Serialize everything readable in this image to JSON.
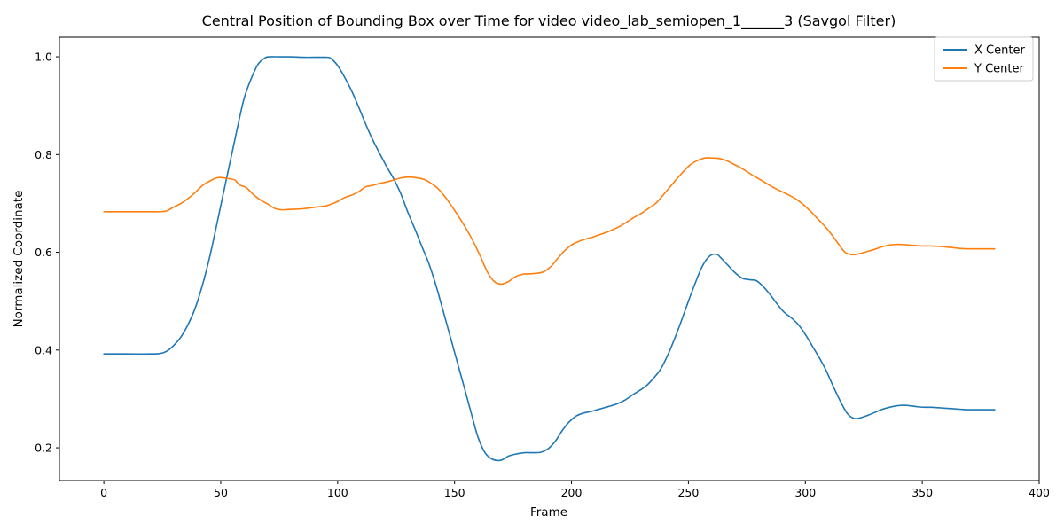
{
  "chart_data": {
    "type": "line",
    "title": "Central Position of Bounding Box over Time for video video_lab_semiopen_1______3 (Savgol Filter)",
    "xlabel": "Frame",
    "ylabel": "Normalized Coordinate",
    "xlim": [
      -19,
      400
    ],
    "ylim": [
      0.133,
      1.04
    ],
    "xticks": [
      0,
      50,
      100,
      150,
      200,
      250,
      300,
      350,
      400
    ],
    "yticks": [
      0.2,
      0.4,
      0.6,
      0.8,
      1.0
    ],
    "xtick_labels": [
      "0",
      "50",
      "100",
      "150",
      "200",
      "250",
      "300",
      "350",
      "400"
    ],
    "ytick_labels": [
      "0.2",
      "0.4",
      "0.6",
      "0.8",
      "1.0"
    ],
    "grid": false,
    "legend_position": "top-right",
    "series": [
      {
        "name": "X Center",
        "color": "#1f77b4",
        "x": [
          0,
          10,
          20,
          24,
          27,
          30,
          33,
          36,
          39,
          42,
          45,
          48,
          51,
          54,
          57,
          60,
          63,
          66,
          69,
          71,
          75,
          80,
          85,
          90,
          95,
          97,
          100,
          103,
          106,
          109,
          112,
          115,
          118,
          121,
          124,
          127,
          130,
          133,
          136,
          139,
          142,
          145,
          148,
          151,
          154,
          157,
          160,
          163,
          166,
          169,
          171,
          173,
          176,
          180,
          184,
          187,
          190,
          193,
          196,
          199,
          202,
          205,
          208,
          211,
          214,
          217,
          220,
          223,
          226,
          229,
          232,
          235,
          238,
          241,
          244,
          247,
          250,
          253,
          256,
          259,
          262,
          264,
          267,
          270,
          273,
          276,
          279,
          282,
          285,
          288,
          291,
          294,
          297,
          300,
          303,
          306,
          309,
          312,
          315,
          318,
          321,
          324,
          327,
          330,
          333,
          336,
          339,
          342,
          345,
          348,
          351,
          354,
          357,
          360,
          363,
          366,
          369,
          372,
          375,
          378,
          381
        ],
        "y": [
          0.392,
          0.392,
          0.392,
          0.393,
          0.398,
          0.41,
          0.427,
          0.452,
          0.485,
          0.53,
          0.585,
          0.65,
          0.718,
          0.785,
          0.852,
          0.915,
          0.955,
          0.985,
          0.998,
          1.0,
          1.0,
          1.0,
          0.999,
          0.999,
          0.999,
          0.997,
          0.982,
          0.958,
          0.93,
          0.897,
          0.862,
          0.83,
          0.802,
          0.775,
          0.75,
          0.72,
          0.682,
          0.648,
          0.612,
          0.577,
          0.533,
          0.482,
          0.43,
          0.378,
          0.326,
          0.273,
          0.222,
          0.19,
          0.177,
          0.174,
          0.177,
          0.183,
          0.187,
          0.19,
          0.19,
          0.191,
          0.198,
          0.213,
          0.235,
          0.253,
          0.265,
          0.271,
          0.274,
          0.278,
          0.282,
          0.286,
          0.291,
          0.298,
          0.308,
          0.317,
          0.327,
          0.342,
          0.36,
          0.388,
          0.422,
          0.46,
          0.5,
          0.538,
          0.572,
          0.592,
          0.596,
          0.588,
          0.573,
          0.558,
          0.547,
          0.544,
          0.542,
          0.53,
          0.513,
          0.494,
          0.477,
          0.466,
          0.452,
          0.432,
          0.408,
          0.384,
          0.357,
          0.325,
          0.295,
          0.27,
          0.26,
          0.262,
          0.267,
          0.273,
          0.279,
          0.283,
          0.286,
          0.287,
          0.286,
          0.284,
          0.283,
          0.283,
          0.282,
          0.281,
          0.28,
          0.279,
          0.278,
          0.278,
          0.278,
          0.278,
          0.278
        ]
      },
      {
        "name": "Y Center",
        "color": "#ff7f0e",
        "x": [
          0,
          10,
          20,
          24,
          27,
          30,
          33,
          36,
          39,
          42,
          45,
          48,
          50,
          53,
          56,
          58,
          61,
          64,
          67,
          70,
          73,
          76,
          80,
          85,
          90,
          95,
          98,
          100,
          103,
          106,
          109,
          112,
          115,
          118,
          121,
          124,
          127,
          130,
          133,
          137,
          140,
          143,
          146,
          149,
          152,
          155,
          158,
          161,
          164,
          167,
          170,
          173,
          176,
          179,
          182,
          185,
          188,
          191,
          194,
          197,
          200,
          203,
          206,
          209,
          212,
          215,
          218,
          221,
          224,
          227,
          230,
          233,
          236,
          239,
          242,
          245,
          248,
          251,
          254,
          257,
          260,
          263,
          266,
          269,
          272,
          275,
          278,
          281,
          284,
          287,
          290,
          293,
          296,
          299,
          302,
          305,
          308,
          311,
          314,
          317,
          320,
          323,
          326,
          329,
          332,
          335,
          338,
          341,
          344,
          347,
          350,
          354,
          358,
          362,
          366,
          370,
          375,
          381
        ],
        "y": [
          0.683,
          0.683,
          0.683,
          0.683,
          0.685,
          0.693,
          0.7,
          0.71,
          0.722,
          0.736,
          0.745,
          0.752,
          0.753,
          0.751,
          0.748,
          0.738,
          0.732,
          0.718,
          0.707,
          0.699,
          0.69,
          0.687,
          0.688,
          0.689,
          0.692,
          0.695,
          0.7,
          0.704,
          0.712,
          0.717,
          0.724,
          0.734,
          0.737,
          0.741,
          0.744,
          0.748,
          0.752,
          0.754,
          0.753,
          0.749,
          0.741,
          0.73,
          0.713,
          0.693,
          0.671,
          0.648,
          0.622,
          0.592,
          0.56,
          0.54,
          0.535,
          0.54,
          0.55,
          0.555,
          0.556,
          0.557,
          0.56,
          0.57,
          0.587,
          0.603,
          0.615,
          0.622,
          0.627,
          0.631,
          0.636,
          0.641,
          0.647,
          0.654,
          0.663,
          0.672,
          0.68,
          0.69,
          0.7,
          0.716,
          0.733,
          0.75,
          0.766,
          0.78,
          0.788,
          0.793,
          0.793,
          0.792,
          0.788,
          0.781,
          0.774,
          0.765,
          0.756,
          0.748,
          0.739,
          0.731,
          0.724,
          0.717,
          0.709,
          0.698,
          0.685,
          0.67,
          0.655,
          0.638,
          0.618,
          0.6,
          0.595,
          0.597,
          0.601,
          0.605,
          0.61,
          0.614,
          0.616,
          0.616,
          0.615,
          0.614,
          0.613,
          0.613,
          0.612,
          0.61,
          0.608,
          0.607,
          0.607,
          0.607
        ]
      }
    ]
  }
}
